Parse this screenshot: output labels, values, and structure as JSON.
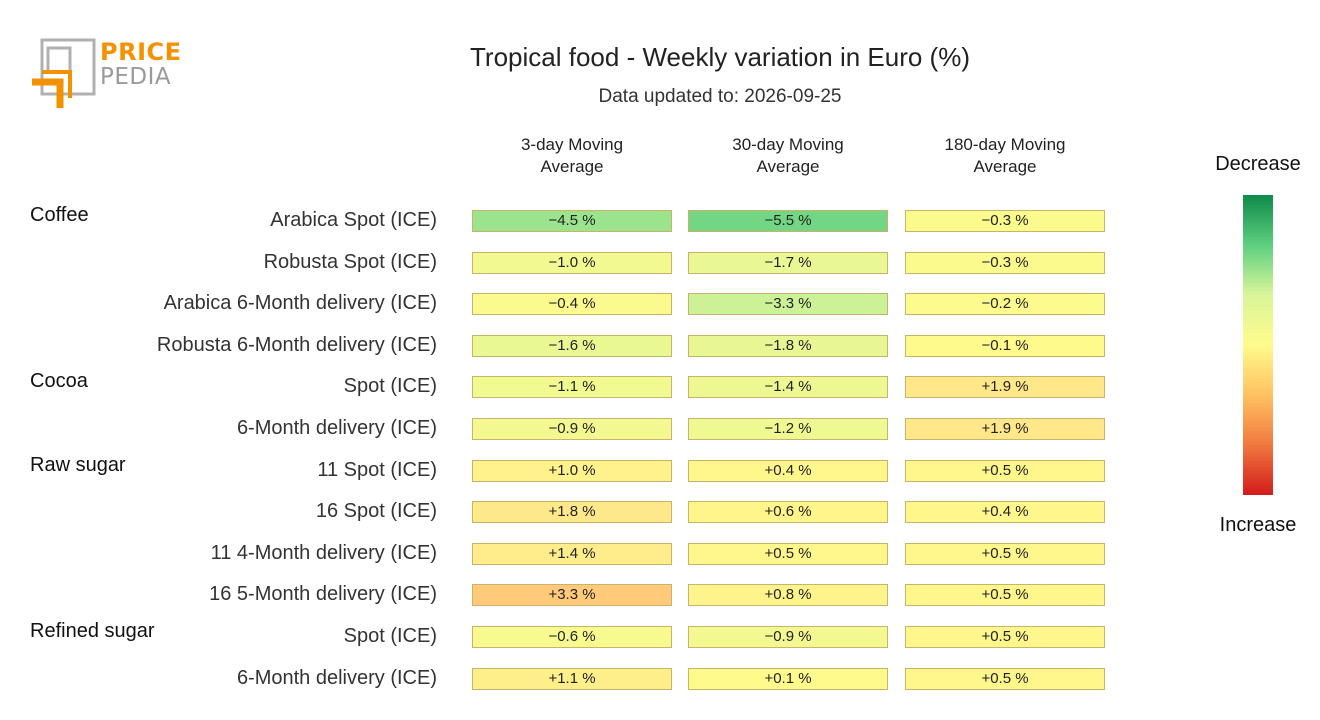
{
  "logo": {
    "line1": "PRICE",
    "line2": "PEDIA"
  },
  "title": "Tropical food - Weekly variation in Euro (%)",
  "subtitle": "Data updated to: 2026-09-25",
  "scale": {
    "top_label": "Decrease",
    "bottom_label": "Increase",
    "colors": [
      "#0f8a4a",
      "#5fd080",
      "#d8f59a",
      "#fffb8c",
      "#ffc060",
      "#f07a40",
      "#d31b1b"
    ]
  },
  "chart_data": {
    "type": "table",
    "title": "Tropical food - Weekly variation in Euro (%)",
    "subtitle": "Data updated to: 2026-09-25",
    "columns": [
      "3-day Moving Average",
      "30-day Moving Average",
      "180-day Moving Average"
    ],
    "column_lines": [
      [
        "3-day Moving",
        "Average"
      ],
      [
        "30-day Moving",
        "Average"
      ],
      [
        "180-day Moving",
        "Average"
      ]
    ],
    "groups": [
      {
        "name": "Coffee",
        "rows": [
          {
            "label": "Arabica Spot (ICE)",
            "values": [
              -4.5,
              -5.5,
              -0.3
            ],
            "texts": [
              "−4.5 %",
              "−5.5 %",
              "−0.3 %"
            ]
          },
          {
            "label": "Robusta Spot (ICE)",
            "values": [
              -1.0,
              -1.7,
              -0.3
            ],
            "texts": [
              "−1.0 %",
              "−1.7 %",
              "−0.3 %"
            ]
          },
          {
            "label": "Arabica 6-Month delivery (ICE)",
            "values": [
              -0.4,
              -3.3,
              -0.2
            ],
            "texts": [
              "−0.4 %",
              "−3.3 %",
              "−0.2 %"
            ]
          },
          {
            "label": "Robusta 6-Month delivery (ICE)",
            "values": [
              -1.6,
              -1.8,
              -0.1
            ],
            "texts": [
              "−1.6 %",
              "−1.8 %",
              "−0.1 %"
            ]
          }
        ]
      },
      {
        "name": "Cocoa",
        "rows": [
          {
            "label": "Spot (ICE)",
            "values": [
              -1.1,
              -1.4,
              1.9
            ],
            "texts": [
              "−1.1 %",
              "−1.4 %",
              "+1.9 %"
            ]
          },
          {
            "label": "6-Month delivery (ICE)",
            "values": [
              -0.9,
              -1.2,
              1.9
            ],
            "texts": [
              "−0.9 %",
              "−1.2 %",
              "+1.9 %"
            ]
          }
        ]
      },
      {
        "name": "Raw sugar",
        "rows": [
          {
            "label": "11 Spot (ICE)",
            "values": [
              1.0,
              0.4,
              0.5
            ],
            "texts": [
              "+1.0 %",
              "+0.4 %",
              "+0.5 %"
            ]
          },
          {
            "label": "16 Spot (ICE)",
            "values": [
              1.8,
              0.6,
              0.4
            ],
            "texts": [
              "+1.8 %",
              "+0.6 %",
              "+0.4 %"
            ]
          },
          {
            "label": "11 4-Month delivery (ICE)",
            "values": [
              1.4,
              0.5,
              0.5
            ],
            "texts": [
              "+1.4 %",
              "+0.5 %",
              "+0.5 %"
            ]
          },
          {
            "label": "16 5-Month delivery (ICE)",
            "values": [
              3.3,
              0.8,
              0.5
            ],
            "texts": [
              "+3.3 %",
              "+0.8 %",
              "+0.5 %"
            ]
          }
        ]
      },
      {
        "name": "Refined sugar",
        "rows": [
          {
            "label": "Spot (ICE)",
            "values": [
              -0.6,
              -0.9,
              0.5
            ],
            "texts": [
              "−0.6 %",
              "−0.9 %",
              "+0.5 %"
            ]
          },
          {
            "label": "6-Month delivery (ICE)",
            "values": [
              1.1,
              0.1,
              0.5
            ],
            "texts": [
              "+1.1 %",
              "+0.1 %",
              "+0.5 %"
            ]
          }
        ]
      }
    ]
  }
}
